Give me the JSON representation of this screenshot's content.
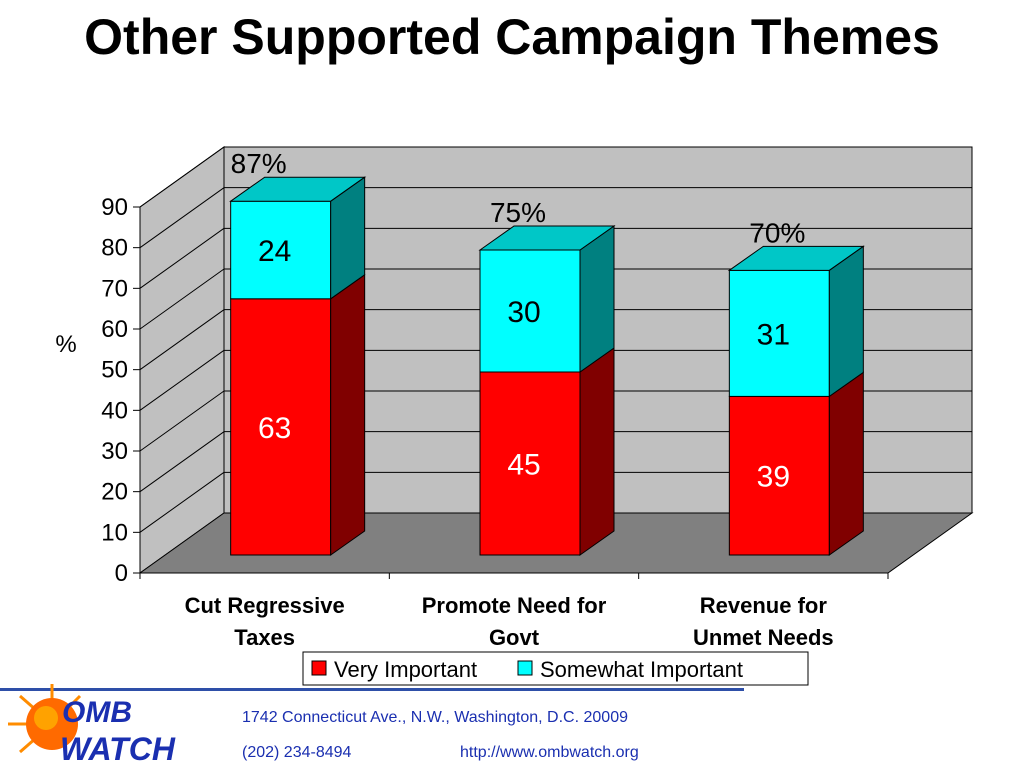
{
  "title": "Other Supported Campaign Themes",
  "colors": {
    "very_important": "#ff0000",
    "somewhat_important": "#00ffff",
    "plot_wall": "#c0c0c0",
    "plot_floor": "#808080",
    "accent_blue": "#1a2fb0"
  },
  "chart_data": {
    "type": "bar",
    "stacked": true,
    "three_d": true,
    "title": "Other Supported Campaign Themes",
    "categories": [
      "Cut Regressive Taxes",
      "Promote Need for Govt",
      "Revenue for Unmet Needs"
    ],
    "category_lines": [
      [
        "Cut Regressive",
        "Taxes"
      ],
      [
        "Promote Need for",
        "Govt"
      ],
      [
        "Revenue for",
        "Unmet Needs"
      ]
    ],
    "series": [
      {
        "name": "Very Important",
        "values": [
          63,
          45,
          39
        ],
        "color": "#ff0000"
      },
      {
        "name": "Somewhat Important",
        "values": [
          24,
          30,
          31
        ],
        "color": "#00ffff"
      }
    ],
    "totals": [
      "87%",
      "75%",
      "70%"
    ],
    "ylabel": "%",
    "xlabel": "",
    "ylim": [
      0,
      90
    ],
    "yticks": [
      0,
      10,
      20,
      30,
      40,
      50,
      60,
      70,
      80,
      90
    ],
    "grid": true,
    "legend_position": "bottom"
  },
  "footer": {
    "logo_text_top": "OMB",
    "logo_text_bottom": "WATCH",
    "address": "1742 Connecticut Ave., N.W., Washington, D.C. 20009",
    "phone": "(202) 234-8494",
    "url": "http://www.ombwatch.org"
  }
}
